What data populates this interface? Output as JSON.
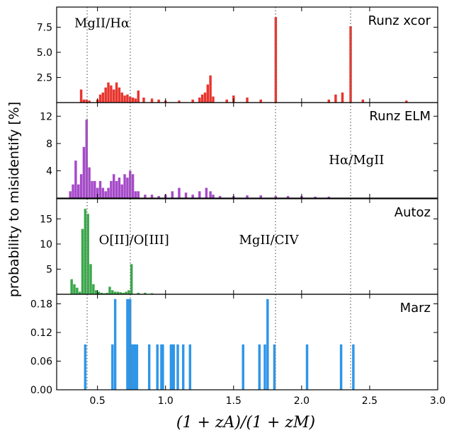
{
  "chart_data": {
    "type": "bar",
    "ylabel": "probability to misidentify [%]",
    "xlabel": "(1+z_A)/(1+z_M)",
    "xlabel_display": "(1 + zA)/(1 + zM)",
    "xlim": [
      0.2,
      3.0
    ],
    "xticks": [
      "0.5",
      "1.0",
      "1.5",
      "2.0",
      "2.5",
      "3.0"
    ],
    "xtick_values": [
      0.5,
      1.0,
      1.5,
      2.0,
      2.5,
      3.0
    ],
    "reference_lines_x": [
      0.424,
      0.741,
      1.808,
      2.36
    ],
    "panels": [
      {
        "title": "Runz xcor",
        "color": "#e8352e",
        "ylim": [
          0,
          9.5
        ],
        "yticks": [
          "2.5",
          "5.0",
          "7.5"
        ],
        "ytick_values": [
          2.5,
          5.0,
          7.5
        ],
        "annotations": [
          {
            "text": "MgII/Hα",
            "x": 0.33,
            "y": 7.5
          }
        ],
        "x": [
          0.38,
          0.4,
          0.42,
          0.44,
          0.5,
          0.52,
          0.54,
          0.56,
          0.58,
          0.6,
          0.62,
          0.64,
          0.66,
          0.68,
          0.7,
          0.72,
          0.74,
          0.76,
          0.78,
          0.8,
          0.84,
          0.9,
          0.95,
          1.0,
          1.1,
          1.2,
          1.25,
          1.27,
          1.29,
          1.31,
          1.33,
          1.35,
          1.45,
          1.5,
          1.6,
          1.7,
          1.81,
          2.2,
          2.25,
          2.3,
          2.36,
          2.45,
          2.77
        ],
        "values": [
          1.3,
          0.3,
          0.3,
          0.2,
          0.3,
          0.8,
          1.0,
          1.5,
          2.0,
          1.7,
          1.3,
          2.0,
          1.5,
          1.0,
          0.7,
          0.8,
          0.6,
          0.5,
          0.4,
          1.2,
          0.5,
          0.4,
          0.3,
          0.2,
          0.2,
          0.3,
          0.5,
          0.8,
          1.0,
          1.8,
          2.7,
          0.6,
          0.3,
          0.7,
          0.5,
          0.3,
          8.5,
          0.3,
          0.8,
          1.0,
          7.6,
          0.3,
          0.2
        ]
      },
      {
        "title": "Runz ELM",
        "color": "#a64ac9",
        "ylim": [
          0,
          14
        ],
        "yticks": [
          "4",
          "8",
          "12"
        ],
        "ytick_values": [
          4,
          8,
          12
        ],
        "annotations": [
          {
            "text": "Hα/MgII",
            "x": 2.2,
            "y": 5.0
          }
        ],
        "x": [
          0.3,
          0.32,
          0.34,
          0.36,
          0.38,
          0.4,
          0.42,
          0.44,
          0.46,
          0.48,
          0.5,
          0.52,
          0.54,
          0.56,
          0.58,
          0.6,
          0.62,
          0.64,
          0.66,
          0.68,
          0.7,
          0.72,
          0.74,
          0.76,
          0.78,
          0.8,
          0.85,
          0.9,
          0.95,
          1.0,
          1.05,
          1.1,
          1.15,
          1.2,
          1.25,
          1.3,
          1.33,
          1.35,
          1.4,
          1.5,
          1.6,
          1.7,
          1.81,
          1.9,
          2.0,
          2.1,
          2.2
        ],
        "values": [
          1.0,
          2.0,
          5.5,
          2.0,
          3.5,
          7.5,
          11.5,
          4.5,
          2.5,
          2.5,
          1.5,
          2.5,
          1.5,
          1.0,
          1.5,
          2.5,
          3.5,
          2.5,
          3.0,
          2.0,
          3.5,
          3.0,
          4.0,
          3.5,
          1.0,
          1.0,
          0.5,
          0.5,
          0.3,
          0.5,
          1.0,
          1.5,
          0.8,
          0.5,
          1.0,
          1.5,
          1.0,
          0.5,
          0.3,
          0.3,
          0.4,
          0.4,
          0.3,
          0.3,
          0.3,
          0.2,
          0.2
        ]
      },
      {
        "title": "Autoz",
        "color": "#3aa84a",
        "ylim": [
          0,
          19
        ],
        "yticks": [
          "5",
          "10",
          "15"
        ],
        "ytick_values": [
          5,
          10,
          15
        ],
        "annotations": [
          {
            "text": "O[II]/O[III]",
            "x": 0.51,
            "y": 10.0
          },
          {
            "text": "MgII/CIV",
            "x": 1.54,
            "y": 10.0
          }
        ],
        "x": [
          0.31,
          0.33,
          0.35,
          0.37,
          0.39,
          0.41,
          0.43,
          0.45,
          0.47,
          0.49,
          0.51,
          0.53,
          0.55,
          0.57,
          0.59,
          0.61,
          0.63,
          0.65,
          0.67,
          0.69,
          0.71,
          0.73,
          0.75,
          0.8,
          0.85,
          0.9
        ],
        "values": [
          3.0,
          2.0,
          1.3,
          0.5,
          13.0,
          17.0,
          16.0,
          6.0,
          2.0,
          0.8,
          0.5,
          0.3,
          0.2,
          0.3,
          1.5,
          0.8,
          0.5,
          0.5,
          0.4,
          0.3,
          0.5,
          0.8,
          6.0,
          0.3,
          0.3,
          0.2
        ]
      },
      {
        "title": "Marz",
        "color": "#2f96e8",
        "ylim": [
          0,
          0.2
        ],
        "yticks": [
          "0.00",
          "0.06",
          "0.12",
          "0.18"
        ],
        "ytick_values": [
          0,
          0.06,
          0.12,
          0.18
        ],
        "annotations": [],
        "x": [
          0.41,
          0.61,
          0.63,
          0.72,
          0.73,
          0.74,
          0.75,
          0.76,
          0.77,
          0.78,
          0.79,
          0.88,
          0.94,
          0.97,
          0.98,
          1.04,
          1.05,
          1.06,
          1.09,
          1.13,
          1.18,
          1.57,
          1.69,
          1.73,
          1.75,
          1.8,
          2.04,
          2.29,
          2.38
        ],
        "values": [
          0.095,
          0.095,
          0.19,
          0.19,
          0.19,
          0.19,
          0.095,
          0.095,
          0.095,
          0.095,
          0.095,
          0.095,
          0.095,
          0.095,
          0.095,
          0.095,
          0.095,
          0.095,
          0.095,
          0.095,
          0.095,
          0.095,
          0.095,
          0.095,
          0.19,
          0.095,
          0.095,
          0.095,
          0.095
        ]
      }
    ]
  }
}
